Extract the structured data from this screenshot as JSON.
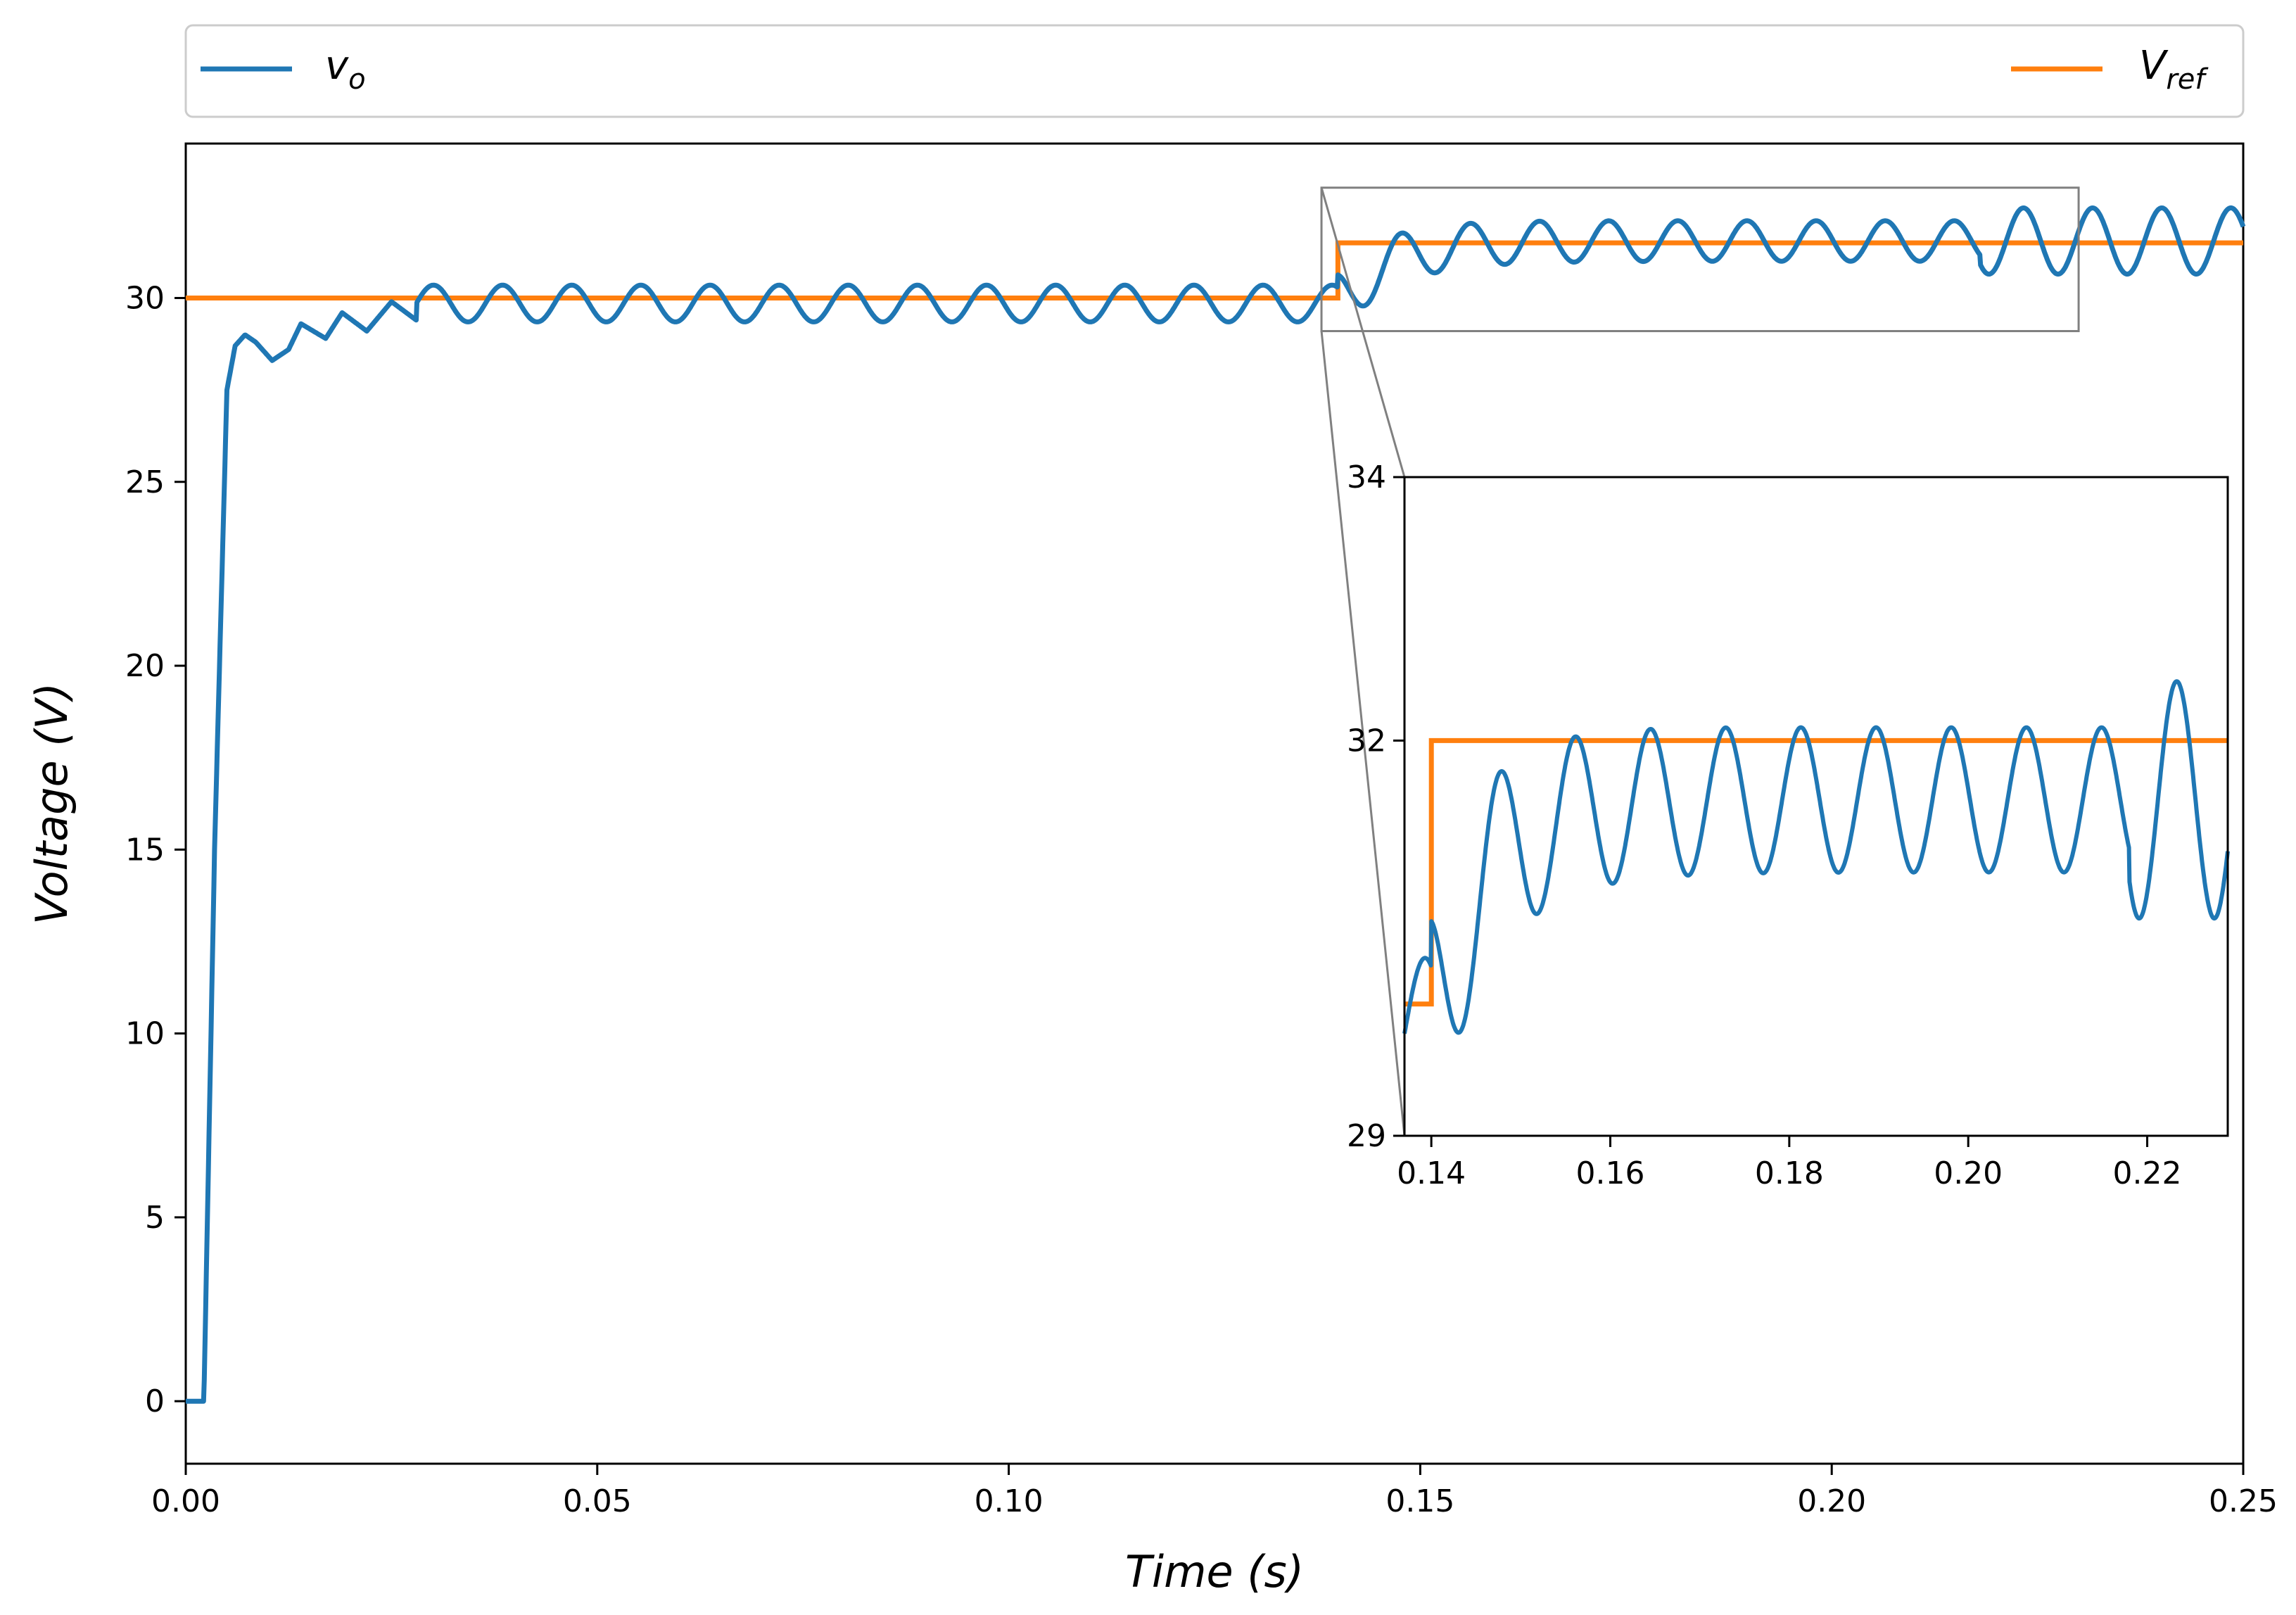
{
  "colors": {
    "vo": "#1f77b4",
    "vref": "#ff7f0e",
    "zoom_box": "#808080",
    "axes": "#000000",
    "legend_border": "#cccccc"
  },
  "legend": {
    "placement": "top, above the plot",
    "entries": [
      {
        "main": "v",
        "sub": "o"
      },
      {
        "main": "V",
        "sub": "ref"
      }
    ]
  },
  "chart_data": {
    "type": "line",
    "title": "",
    "xlabel": "Time (s)",
    "ylabel": "Voltage (V)",
    "xlim": [
      0.0,
      0.25
    ],
    "ylim": [
      -1.7,
      34.2
    ],
    "xticks": [
      "0.00",
      "0.05",
      "0.10",
      "0.15",
      "0.20",
      "0.25"
    ],
    "yticks": [
      "0",
      "5",
      "10",
      "15",
      "20",
      "25",
      "30"
    ],
    "grid": false,
    "legend_placement": "top",
    "series": [
      {
        "name": "v_o",
        "description_points": {
          "t": [
            0.0,
            0.0022,
            0.0035,
            0.005,
            0.006,
            0.0072,
            0.0085,
            0.0105,
            0.0125,
            0.014,
            0.017,
            0.019,
            0.022,
            0.025,
            0.028
          ],
          "v": [
            0.0,
            0.0,
            15.0,
            27.5,
            28.7,
            29.0,
            28.8,
            28.3,
            28.6,
            29.3,
            28.9,
            29.6,
            29.1,
            29.9,
            29.4
          ]
        },
        "steady_state_1": {
          "t_start": 0.028,
          "t_end": 0.14,
          "mean": 29.85,
          "amplitude": 0.5,
          "period": 0.0084
        },
        "steady_state_2": {
          "t_start": 0.14,
          "t_end": 0.25,
          "mean": 31.55,
          "amplitude": 0.55,
          "period": 0.0084,
          "late_amplitude": 0.9
        }
      },
      {
        "name": "V_ref",
        "x": [
          0.0,
          0.14,
          0.14,
          0.25
        ],
        "y": [
          30.0,
          30.0,
          31.5,
          31.5
        ]
      }
    ],
    "inset": {
      "xlim": [
        0.137,
        0.229
      ],
      "ylim": [
        29.0,
        34.0
      ],
      "xticks": [
        "0.14",
        "0.16",
        "0.18",
        "0.20",
        "0.22"
      ],
      "yticks": [
        "29",
        "32",
        "34"
      ],
      "zoom_region": {
        "x": [
          0.138,
          0.23
        ],
        "y": [
          29.1,
          33.0
        ]
      }
    }
  }
}
